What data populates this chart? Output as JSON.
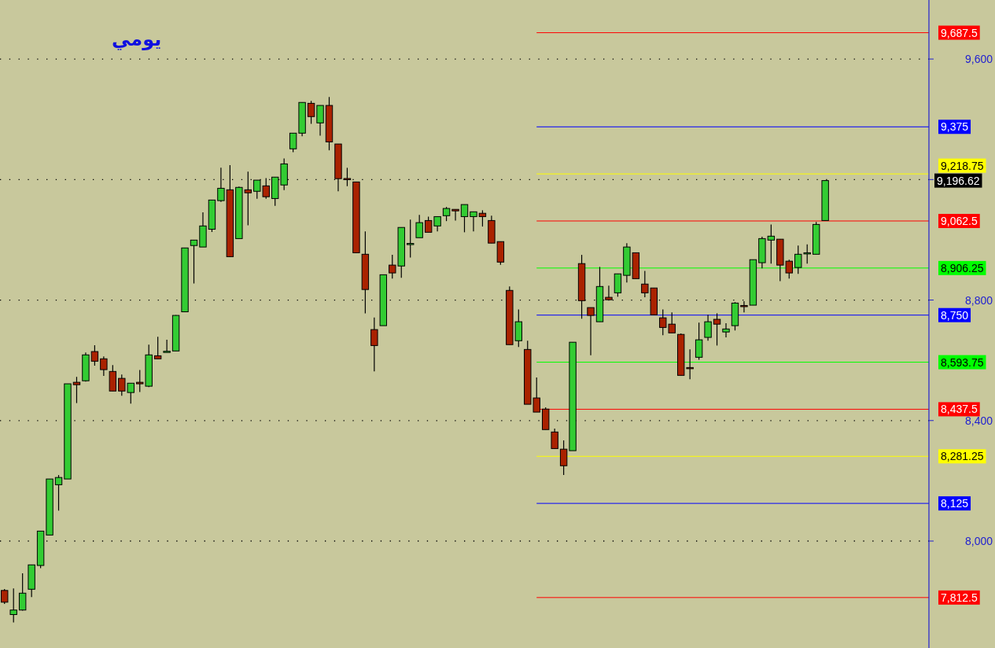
{
  "chart_data": {
    "type": "candlestick",
    "title": "يومي",
    "categories": [
      null,
      null,
      null,
      null,
      null,
      null,
      null,
      null,
      null,
      null,
      null,
      null,
      null,
      null,
      null,
      null,
      null,
      null,
      null,
      null,
      null,
      null,
      null,
      null,
      null,
      null,
      null,
      null,
      null,
      null,
      null,
      null,
      null,
      null,
      null,
      null,
      null,
      null,
      null,
      null,
      null,
      null,
      null,
      null,
      null,
      null,
      null,
      null,
      null,
      null,
      null,
      null,
      null,
      null,
      null,
      null,
      null,
      null,
      null,
      null,
      null,
      null,
      null,
      null,
      null,
      null,
      null,
      null,
      null,
      null,
      null,
      null,
      null,
      null,
      null,
      null,
      null,
      null,
      null,
      null,
      null,
      null,
      null,
      null,
      null,
      null,
      null,
      null,
      null,
      null,
      null,
      null,
      null,
      null,
      null,
      null,
      null,
      null,
      null,
      null,
      null,
      null,
      null
    ],
    "ohlc": [
      [
        7836,
        7841,
        7791,
        7797
      ],
      [
        7756,
        7843,
        7730,
        7771
      ],
      [
        7771,
        7893,
        7769,
        7827
      ],
      [
        7840,
        7921,
        7814,
        7921
      ],
      [
        7919,
        8033,
        7910,
        8033
      ],
      [
        8020,
        8206,
        8020,
        8206
      ],
      [
        8187,
        8219,
        8101,
        8211
      ],
      [
        8206,
        8522,
        8206,
        8522
      ],
      [
        8527,
        8545,
        8458,
        8519
      ],
      [
        8532,
        8626,
        8529,
        8618
      ],
      [
        8629,
        8650,
        8582,
        8597
      ],
      [
        8605,
        8613,
        8548,
        8569
      ],
      [
        8563,
        8584,
        8498,
        8498
      ],
      [
        8540,
        8553,
        8482,
        8498
      ],
      [
        8493,
        8524,
        8456,
        8524
      ],
      [
        8527,
        8568,
        8495,
        8522
      ],
      [
        8514,
        8652,
        8511,
        8618
      ],
      [
        8615,
        8678,
        8605,
        8605
      ],
      [
        8627,
        8668,
        8627,
        8629
      ],
      [
        8631,
        8750,
        8631,
        8749
      ],
      [
        8761,
        8973,
        8761,
        8973
      ],
      [
        8981,
        8999,
        8855,
        8999
      ],
      [
        8976,
        9091,
        8976,
        9046
      ],
      [
        9035,
        9132,
        9026,
        9132
      ],
      [
        9130,
        9239,
        9126,
        9171
      ],
      [
        9166,
        9248,
        8944,
        8944
      ],
      [
        9004,
        9177,
        9004,
        9174
      ],
      [
        9166,
        9226,
        9048,
        9156
      ],
      [
        9161,
        9198,
        9136,
        9198
      ],
      [
        9179,
        9205,
        9136,
        9143
      ],
      [
        9137,
        9208,
        9113,
        9208
      ],
      [
        9182,
        9270,
        9165,
        9252
      ],
      [
        9302,
        9354,
        9291,
        9354
      ],
      [
        9354,
        9456,
        9344,
        9456
      ],
      [
        9453,
        9461,
        9385,
        9409
      ],
      [
        9388,
        9446,
        9346,
        9446
      ],
      [
        9446,
        9474,
        9297,
        9325
      ],
      [
        9318,
        9318,
        9161,
        9203
      ],
      [
        9202,
        9239,
        9178,
        9201
      ],
      [
        9192,
        9192,
        8957,
        8957
      ],
      [
        8952,
        9028,
        8756,
        8835
      ],
      [
        8702,
        8742,
        8563,
        8649
      ],
      [
        8715,
        8884,
        8715,
        8884
      ],
      [
        8916,
        8950,
        8871,
        8890
      ],
      [
        8913,
        9041,
        8874,
        9041
      ],
      [
        8985,
        9067,
        8941,
        8987
      ],
      [
        9007,
        9083,
        9007,
        9057
      ],
      [
        9064,
        9077,
        9025,
        9025
      ],
      [
        9046,
        9077,
        9028,
        9077
      ],
      [
        9080,
        9109,
        9062,
        9104
      ],
      [
        9101,
        9101,
        9064,
        9096
      ],
      [
        9077,
        9117,
        9025,
        9117
      ],
      [
        9077,
        9093,
        9028,
        9093
      ],
      [
        9088,
        9098,
        9044,
        9077
      ],
      [
        9064,
        9080,
        8989,
        8989
      ],
      [
        8994,
        8994,
        8917,
        8926
      ],
      [
        8832,
        8845,
        8652,
        8652
      ],
      [
        8665,
        8769,
        8644,
        8728
      ],
      [
        8636,
        8665,
        8454,
        8454
      ],
      [
        8475,
        8543,
        8428,
        8428
      ],
      [
        8438,
        8444,
        8370,
        8370
      ],
      [
        8362,
        8373,
        8307,
        8307
      ],
      [
        8305,
        8334,
        8219,
        8250
      ],
      [
        8300,
        8660,
        8300,
        8660
      ],
      [
        8921,
        8950,
        8738,
        8798
      ],
      [
        8775,
        8775,
        8617,
        8749
      ],
      [
        8728,
        8910,
        8728,
        8845
      ],
      [
        8809,
        8848,
        8798,
        8801
      ],
      [
        8824,
        8887,
        8811,
        8887
      ],
      [
        8882,
        8989,
        8858,
        8976
      ],
      [
        8957,
        8957,
        8871,
        8871
      ],
      [
        8853,
        8897,
        8809,
        8824
      ],
      [
        8840,
        8840,
        8751,
        8751
      ],
      [
        8741,
        8769,
        8683,
        8709
      ],
      [
        8720,
        8759,
        8691,
        8691
      ],
      [
        8686,
        8689,
        8550,
        8550
      ],
      [
        8575,
        8636,
        8537,
        8573
      ],
      [
        8610,
        8725,
        8602,
        8668
      ],
      [
        8676,
        8751,
        8665,
        8728
      ],
      [
        8736,
        8756,
        8649,
        8720
      ],
      [
        8694,
        8723,
        8676,
        8704
      ],
      [
        8715,
        8793,
        8699,
        8790
      ],
      [
        8781,
        8796,
        8759,
        8779
      ],
      [
        8783,
        8934,
        8783,
        8934
      ],
      [
        8924,
        9010,
        8905,
        9004
      ],
      [
        8999,
        9051,
        8921,
        9012
      ],
      [
        9002,
        9002,
        8863,
        8916
      ],
      [
        8929,
        8934,
        8871,
        8890
      ],
      [
        8908,
        8981,
        8887,
        8952
      ],
      [
        8954,
        8985,
        8921,
        8956
      ],
      [
        8952,
        9059,
        8952,
        9051
      ],
      [
        9064,
        9196.62,
        9064,
        9196.62
      ],
      null,
      null,
      null,
      null,
      null,
      null,
      null,
      null,
      null,
      null,
      null
    ],
    "colors": [
      "#aa2200",
      "#33cc33",
      "#33cc33",
      "#33cc33",
      "#33cc33",
      "#33cc33",
      "#33cc33",
      "#33cc33",
      "#aa2200",
      "#33cc33",
      "#aa2200",
      "#aa2200",
      "#aa2200",
      "#aa2200",
      "#33cc33",
      "#aa2200",
      "#33cc33",
      "#aa2200",
      "#33cc33",
      "#33cc33",
      "#33cc33",
      "#33cc33",
      "#33cc33",
      "#33cc33",
      "#33cc33",
      "#aa2200",
      "#33cc33",
      "#aa2200",
      "#33cc33",
      "#aa2200",
      "#33cc33",
      "#33cc33",
      "#33cc33",
      "#33cc33",
      "#aa2200",
      "#33cc33",
      "#aa2200",
      "#aa2200",
      "#aa2200",
      "#aa2200",
      "#aa2200",
      "#aa2200",
      "#33cc33",
      "#aa2200",
      "#33cc33",
      "#33cc33",
      "#33cc33",
      "#aa2200",
      "#33cc33",
      "#33cc33",
      "#aa2200",
      "#33cc33",
      "#33cc33",
      "#aa2200",
      "#aa2200",
      "#aa2200",
      "#aa2200",
      "#33cc33",
      "#aa2200",
      "#aa2200",
      "#aa2200",
      "#aa2200",
      "#aa2200",
      "#33cc33",
      "#aa2200",
      "#aa2200",
      "#33cc33",
      "#aa2200",
      "#33cc33",
      "#33cc33",
      "#aa2200",
      "#aa2200",
      "#aa2200",
      "#aa2200",
      "#aa2200",
      "#aa2200",
      "#aa2200",
      "#33cc33",
      "#33cc33",
      "#aa2200",
      "#33cc33",
      "#33cc33",
      "#aa2200",
      "#33cc33",
      "#33cc33",
      "#33cc33",
      "#aa2200",
      "#aa2200",
      "#33cc33",
      "#33cc33",
      "#33cc33",
      "#33cc33",
      null,
      null,
      null,
      null,
      null,
      null,
      null,
      null,
      null,
      null,
      null
    ],
    "ylim": [
      7645,
      9796
    ],
    "yticks": [
      {
        "value": 9600,
        "label": "9,600"
      },
      {
        "value": 9200,
        "label": null
      },
      {
        "value": 8800,
        "label": "8,800"
      },
      {
        "value": 8400,
        "label": "8,400"
      },
      {
        "value": 8000,
        "label": "8,000"
      }
    ],
    "grid": "y",
    "ref_lines": [
      {
        "axis": "y",
        "value": 9687.5,
        "label": "9,687.5",
        "color": "#ff0000"
      },
      {
        "axis": "y",
        "value": 9375,
        "label": "9,375",
        "color": "#0000ff"
      },
      {
        "axis": "y",
        "value": 9218.75,
        "label": "9,218.75",
        "color": "#ffff00"
      },
      {
        "axis": "y",
        "value": 9062.5,
        "label": "9,062.5",
        "color": "#ff0000"
      },
      {
        "axis": "y",
        "value": 8906.25,
        "label": "8,906.25",
        "color": "#00ff00"
      },
      {
        "axis": "y",
        "value": 8750,
        "label": "8,750",
        "color": "#0000ff"
      },
      {
        "axis": "y",
        "value": 8593.75,
        "label": "8,593.75",
        "color": "#00ff00"
      },
      {
        "axis": "y",
        "value": 8437.5,
        "label": "8,437.5",
        "color": "#ff0000"
      },
      {
        "axis": "y",
        "value": 8281.25,
        "label": "8,281.25",
        "color": "#ffff00"
      },
      {
        "axis": "y",
        "value": 8125,
        "label": "8,125",
        "color": "#0000ff"
      },
      {
        "axis": "y",
        "value": 7812.5,
        "label": "7,812.5",
        "color": "#ff0000"
      }
    ],
    "annotations": [
      "9,196.62"
    ]
  }
}
